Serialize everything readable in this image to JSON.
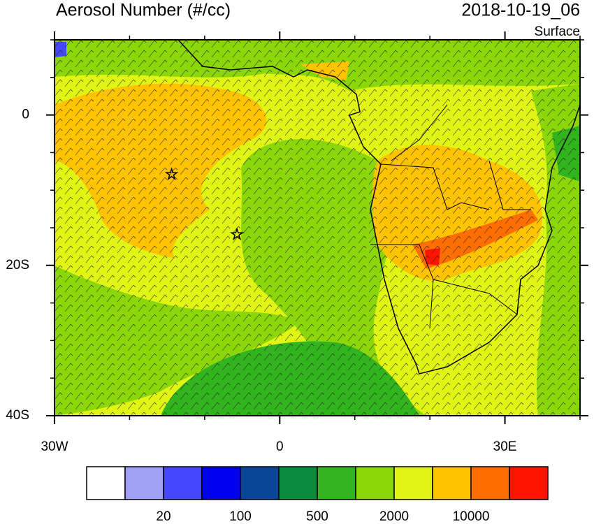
{
  "header": {
    "title": "Aerosol Number (#/cc)",
    "time": "2018-10-19_06",
    "level": "Surface"
  },
  "map": {
    "xlim": [
      -30,
      40
    ],
    "ylim": [
      -40,
      10
    ],
    "xticks": [
      {
        "value": -30,
        "label": "30W"
      },
      0,
      {
        "value": 30,
        "label": "30E"
      }
    ],
    "xminor_ticks": [
      -20,
      -10,
      10,
      20,
      40
    ],
    "yticks": [
      0,
      {
        "value": -20,
        "label": "20S"
      },
      {
        "value": -40,
        "label": "40S"
      }
    ],
    "yminor_ticks": [
      10,
      5,
      -5,
      -10,
      -15,
      -25,
      -30,
      -35
    ],
    "markers": [
      {
        "lon": -14.4,
        "lat": -7.9
      },
      {
        "lon": -5.7,
        "lat": -15.9
      }
    ]
  },
  "colorbar": {
    "colors": [
      "#ffffff",
      "#a0a0f5",
      "#4646fa",
      "#0000f0",
      "#0a4696",
      "#0a8c3c",
      "#32b41e",
      "#8cd70a",
      "#e1f514",
      "#ffc300",
      "#ff6e00",
      "#ff1400"
    ],
    "levels": [
      null,
      20,
      null,
      100,
      null,
      500,
      null,
      2000,
      null,
      10000,
      null
    ]
  }
}
